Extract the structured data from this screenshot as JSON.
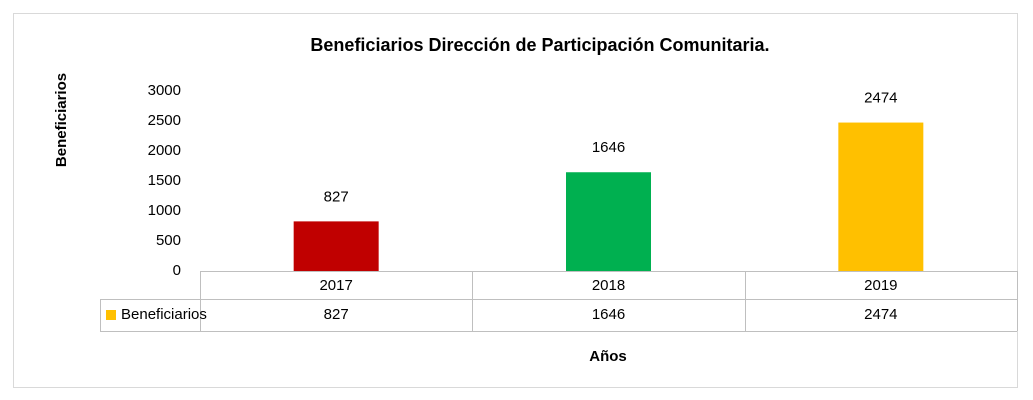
{
  "chart_data": {
    "type": "bar",
    "title": "Beneficiarios Dirección de Participación Comunitaria.",
    "y_label": "Beneficiarios",
    "x_label": "Años",
    "categories": [
      "2017",
      "2018",
      "2019"
    ],
    "series": [
      {
        "name": "Beneficiarios",
        "color": "#ffc000",
        "point_colors": [
          "#c00000",
          "#00b050",
          "#ffc000"
        ],
        "values": [
          827,
          1646,
          2474
        ]
      }
    ],
    "ylim": [
      0,
      3000
    ],
    "yticks": [
      0,
      500,
      1000,
      1500,
      2000,
      2500,
      3000
    ],
    "grid": false,
    "data_labels": true,
    "data_table": true
  }
}
